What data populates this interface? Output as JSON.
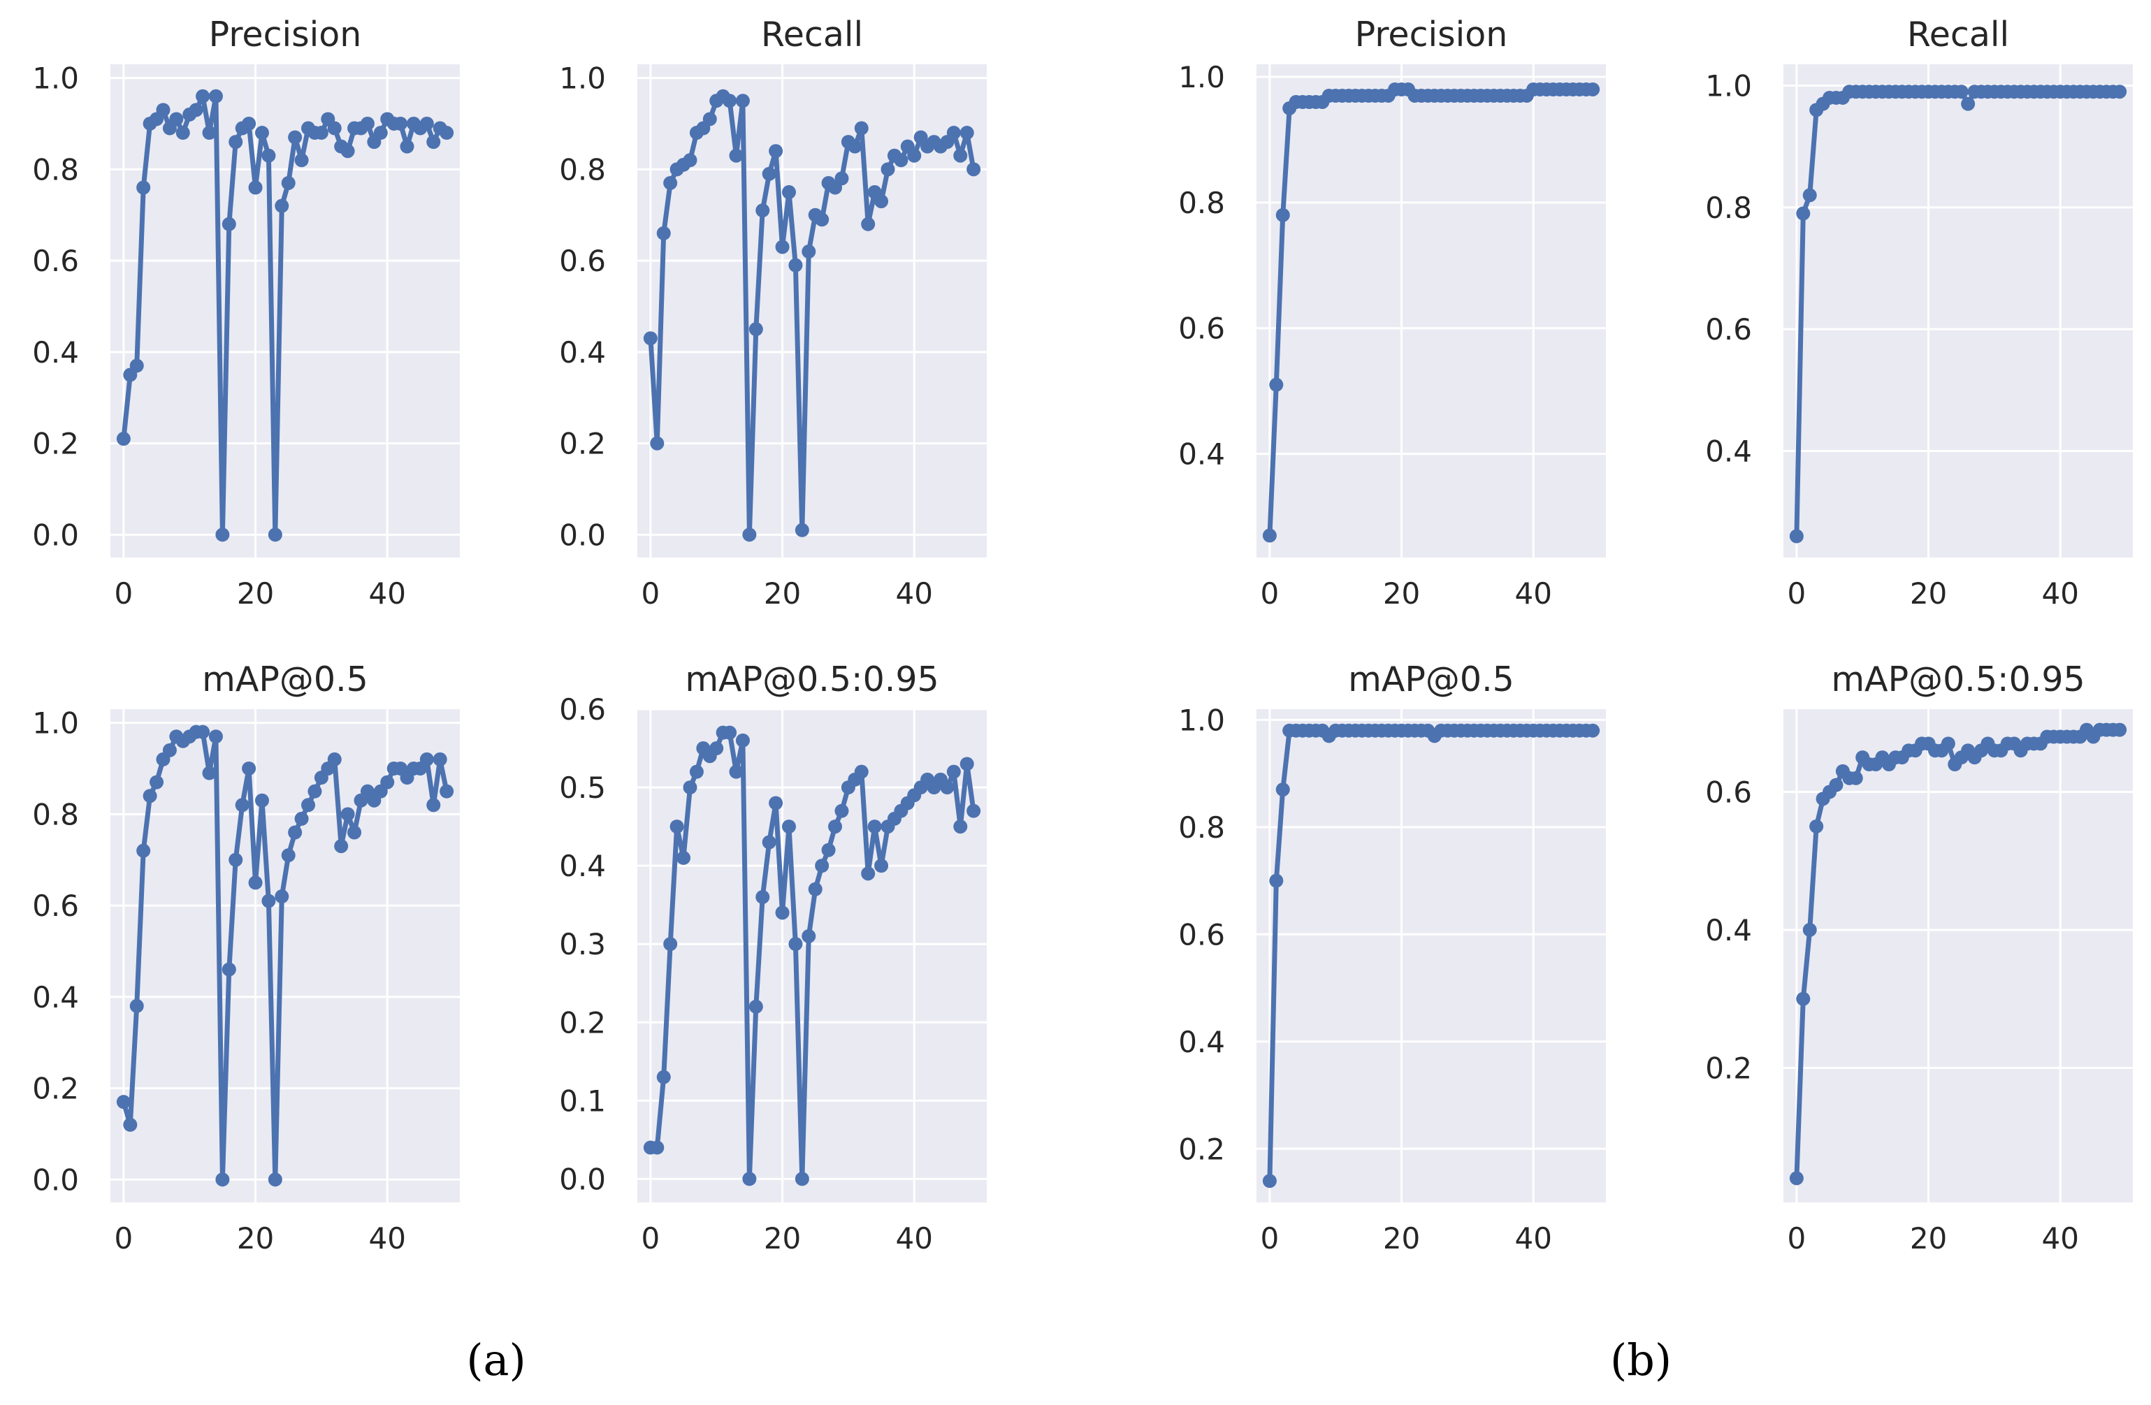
{
  "colors": {
    "series": "#4c72b0",
    "axes_bg": "#eaeaf2",
    "grid": "#ffffff",
    "text": "#262626"
  },
  "style": "seaborn darkgrid",
  "group_labels": [
    {
      "id": "a",
      "text": "(a)"
    },
    {
      "id": "b",
      "text": "(b)"
    }
  ],
  "chart_data": [
    {
      "type": "line",
      "group": "a",
      "title": "Precision",
      "xlabel": "",
      "ylabel": "",
      "xlim": [
        -2,
        51
      ],
      "ylim": [
        -0.05,
        1.03
      ],
      "xticks": [
        0,
        20,
        40
      ],
      "yticks": [
        0.0,
        0.2,
        0.4,
        0.6,
        0.8,
        1.0
      ],
      "xtick_labels": [
        "0",
        "20",
        "40"
      ],
      "ytick_labels": [
        "0.0",
        "0.2",
        "0.4",
        "0.6",
        "0.8",
        "1.0"
      ],
      "grid": true,
      "markers": true,
      "x": [
        0,
        1,
        2,
        3,
        4,
        5,
        6,
        7,
        8,
        9,
        10,
        11,
        12,
        13,
        14,
        15,
        16,
        17,
        18,
        19,
        20,
        21,
        22,
        23,
        24,
        25,
        26,
        27,
        28,
        29,
        30,
        31,
        32,
        33,
        34,
        35,
        36,
        37,
        38,
        39,
        40,
        41,
        42,
        43,
        44,
        45,
        46,
        47,
        48,
        49
      ],
      "y": [
        0.21,
        0.35,
        0.37,
        0.76,
        0.9,
        0.91,
        0.93,
        0.89,
        0.91,
        0.88,
        0.92,
        0.93,
        0.96,
        0.88,
        0.96,
        0.0,
        0.68,
        0.86,
        0.89,
        0.9,
        0.76,
        0.88,
        0.83,
        0.0,
        0.72,
        0.77,
        0.87,
        0.82,
        0.89,
        0.88,
        0.88,
        0.91,
        0.89,
        0.85,
        0.84,
        0.89,
        0.89,
        0.9,
        0.86,
        0.88,
        0.91,
        0.9,
        0.9,
        0.85,
        0.9,
        0.89,
        0.9,
        0.86,
        0.89,
        0.88
      ]
    },
    {
      "type": "line",
      "group": "a",
      "title": "Recall",
      "xlabel": "",
      "ylabel": "",
      "xlim": [
        -2,
        51
      ],
      "ylim": [
        -0.05,
        1.03
      ],
      "xticks": [
        0,
        20,
        40
      ],
      "yticks": [
        0.0,
        0.2,
        0.4,
        0.6,
        0.8,
        1.0
      ],
      "xtick_labels": [
        "0",
        "20",
        "40"
      ],
      "ytick_labels": [
        "0.0",
        "0.2",
        "0.4",
        "0.6",
        "0.8",
        "1.0"
      ],
      "grid": true,
      "markers": true,
      "x": [
        0,
        1,
        2,
        3,
        4,
        5,
        6,
        7,
        8,
        9,
        10,
        11,
        12,
        13,
        14,
        15,
        16,
        17,
        18,
        19,
        20,
        21,
        22,
        23,
        24,
        25,
        26,
        27,
        28,
        29,
        30,
        31,
        32,
        33,
        34,
        35,
        36,
        37,
        38,
        39,
        40,
        41,
        42,
        43,
        44,
        45,
        46,
        47,
        48,
        49
      ],
      "y": [
        0.43,
        0.2,
        0.66,
        0.77,
        0.8,
        0.81,
        0.82,
        0.88,
        0.89,
        0.91,
        0.95,
        0.96,
        0.95,
        0.83,
        0.95,
        0.0,
        0.45,
        0.71,
        0.79,
        0.84,
        0.63,
        0.75,
        0.59,
        0.01,
        0.62,
        0.7,
        0.69,
        0.77,
        0.76,
        0.78,
        0.86,
        0.85,
        0.89,
        0.68,
        0.75,
        0.73,
        0.8,
        0.83,
        0.82,
        0.85,
        0.83,
        0.87,
        0.85,
        0.86,
        0.85,
        0.86,
        0.88,
        0.83,
        0.88,
        0.8
      ]
    },
    {
      "type": "line",
      "group": "a",
      "title": "mAP@0.5",
      "xlabel": "",
      "ylabel": "",
      "xlim": [
        -2,
        51
      ],
      "ylim": [
        -0.05,
        1.03
      ],
      "xticks": [
        0,
        20,
        40
      ],
      "yticks": [
        0.0,
        0.2,
        0.4,
        0.6,
        0.8,
        1.0
      ],
      "xtick_labels": [
        "0",
        "20",
        "40"
      ],
      "ytick_labels": [
        "0.0",
        "0.2",
        "0.4",
        "0.6",
        "0.8",
        "1.0"
      ],
      "grid": true,
      "markers": true,
      "x": [
        0,
        1,
        2,
        3,
        4,
        5,
        6,
        7,
        8,
        9,
        10,
        11,
        12,
        13,
        14,
        15,
        16,
        17,
        18,
        19,
        20,
        21,
        22,
        23,
        24,
        25,
        26,
        27,
        28,
        29,
        30,
        31,
        32,
        33,
        34,
        35,
        36,
        37,
        38,
        39,
        40,
        41,
        42,
        43,
        44,
        45,
        46,
        47,
        48,
        49
      ],
      "y": [
        0.17,
        0.12,
        0.38,
        0.72,
        0.84,
        0.87,
        0.92,
        0.94,
        0.97,
        0.96,
        0.97,
        0.98,
        0.98,
        0.89,
        0.97,
        0.0,
        0.46,
        0.7,
        0.82,
        0.9,
        0.65,
        0.83,
        0.61,
        0.0,
        0.62,
        0.71,
        0.76,
        0.79,
        0.82,
        0.85,
        0.88,
        0.9,
        0.92,
        0.73,
        0.8,
        0.76,
        0.83,
        0.85,
        0.83,
        0.85,
        0.87,
        0.9,
        0.9,
        0.88,
        0.9,
        0.9,
        0.92,
        0.82,
        0.92,
        0.85
      ]
    },
    {
      "type": "line",
      "group": "a",
      "title": "mAP@0.5:0.95",
      "xlabel": "",
      "ylabel": "",
      "xlim": [
        -2,
        51
      ],
      "ylim": [
        -0.03,
        0.6
      ],
      "xticks": [
        0,
        20,
        40
      ],
      "yticks": [
        0.0,
        0.1,
        0.2,
        0.3,
        0.4,
        0.5,
        0.6
      ],
      "xtick_labels": [
        "0",
        "20",
        "40"
      ],
      "ytick_labels": [
        "0.0",
        "0.1",
        "0.2",
        "0.3",
        "0.4",
        "0.5",
        "0.6"
      ],
      "grid": true,
      "markers": true,
      "x": [
        0,
        1,
        2,
        3,
        4,
        5,
        6,
        7,
        8,
        9,
        10,
        11,
        12,
        13,
        14,
        15,
        16,
        17,
        18,
        19,
        20,
        21,
        22,
        23,
        24,
        25,
        26,
        27,
        28,
        29,
        30,
        31,
        32,
        33,
        34,
        35,
        36,
        37,
        38,
        39,
        40,
        41,
        42,
        43,
        44,
        45,
        46,
        47,
        48,
        49
      ],
      "y": [
        0.04,
        0.04,
        0.13,
        0.3,
        0.45,
        0.41,
        0.5,
        0.52,
        0.55,
        0.54,
        0.55,
        0.57,
        0.57,
        0.52,
        0.56,
        0.0,
        0.22,
        0.36,
        0.43,
        0.48,
        0.34,
        0.45,
        0.3,
        0.0,
        0.31,
        0.37,
        0.4,
        0.42,
        0.45,
        0.47,
        0.5,
        0.51,
        0.52,
        0.39,
        0.45,
        0.4,
        0.45,
        0.46,
        0.47,
        0.48,
        0.49,
        0.5,
        0.51,
        0.5,
        0.51,
        0.5,
        0.52,
        0.45,
        0.53,
        0.47
      ]
    },
    {
      "type": "line",
      "group": "b",
      "title": "Precision",
      "xlabel": "",
      "ylabel": "",
      "xlim": [
        -2,
        51
      ],
      "ylim": [
        0.235,
        1.02
      ],
      "xticks": [
        0,
        20,
        40
      ],
      "yticks": [
        0.4,
        0.6,
        0.8,
        1.0
      ],
      "xtick_labels": [
        "0",
        "20",
        "40"
      ],
      "ytick_labels": [
        "0.4",
        "0.6",
        "0.8",
        "1.0"
      ],
      "grid": true,
      "markers": true,
      "x": [
        0,
        1,
        2,
        3,
        4,
        5,
        6,
        7,
        8,
        9,
        10,
        11,
        12,
        13,
        14,
        15,
        16,
        17,
        18,
        19,
        20,
        21,
        22,
        23,
        24,
        25,
        26,
        27,
        28,
        29,
        30,
        31,
        32,
        33,
        34,
        35,
        36,
        37,
        38,
        39,
        40,
        41,
        42,
        43,
        44,
        45,
        46,
        47,
        48,
        49
      ],
      "y": [
        0.27,
        0.51,
        0.78,
        0.95,
        0.96,
        0.96,
        0.96,
        0.96,
        0.96,
        0.97,
        0.97,
        0.97,
        0.97,
        0.97,
        0.97,
        0.97,
        0.97,
        0.97,
        0.97,
        0.98,
        0.98,
        0.98,
        0.97,
        0.97,
        0.97,
        0.97,
        0.97,
        0.97,
        0.97,
        0.97,
        0.97,
        0.97,
        0.97,
        0.97,
        0.97,
        0.97,
        0.97,
        0.97,
        0.97,
        0.97,
        0.98,
        0.98,
        0.98,
        0.98,
        0.98,
        0.98,
        0.98,
        0.98,
        0.98,
        0.98
      ]
    },
    {
      "type": "line",
      "group": "b",
      "title": "Recall",
      "xlabel": "",
      "ylabel": "",
      "xlim": [
        -2,
        51
      ],
      "ylim": [
        0.225,
        1.035
      ],
      "xticks": [
        0,
        20,
        40
      ],
      "yticks": [
        0.4,
        0.6,
        0.8,
        1.0
      ],
      "xtick_labels": [
        "0",
        "20",
        "40"
      ],
      "ytick_labels": [
        "0.4",
        "0.6",
        "0.8",
        "1.0"
      ],
      "grid": true,
      "markers": true,
      "x": [
        0,
        1,
        2,
        3,
        4,
        5,
        6,
        7,
        8,
        9,
        10,
        11,
        12,
        13,
        14,
        15,
        16,
        17,
        18,
        19,
        20,
        21,
        22,
        23,
        24,
        25,
        26,
        27,
        28,
        29,
        30,
        31,
        32,
        33,
        34,
        35,
        36,
        37,
        38,
        39,
        40,
        41,
        42,
        43,
        44,
        45,
        46,
        47,
        48,
        49
      ],
      "y": [
        0.26,
        0.79,
        0.82,
        0.96,
        0.97,
        0.98,
        0.98,
        0.98,
        0.99,
        0.99,
        0.99,
        0.99,
        0.99,
        0.99,
        0.99,
        0.99,
        0.99,
        0.99,
        0.99,
        0.99,
        0.99,
        0.99,
        0.99,
        0.99,
        0.99,
        0.99,
        0.97,
        0.99,
        0.99,
        0.99,
        0.99,
        0.99,
        0.99,
        0.99,
        0.99,
        0.99,
        0.99,
        0.99,
        0.99,
        0.99,
        0.99,
        0.99,
        0.99,
        0.99,
        0.99,
        0.99,
        0.99,
        0.99,
        0.99,
        0.99
      ]
    },
    {
      "type": "line",
      "group": "b",
      "title": "mAP@0.5",
      "xlabel": "",
      "ylabel": "",
      "xlim": [
        -2,
        51
      ],
      "ylim": [
        0.1,
        1.02
      ],
      "xticks": [
        0,
        20,
        40
      ],
      "yticks": [
        0.2,
        0.4,
        0.6,
        0.8,
        1.0
      ],
      "xtick_labels": [
        "0",
        "20",
        "40"
      ],
      "ytick_labels": [
        "0.2",
        "0.4",
        "0.6",
        "0.8",
        "1.0"
      ],
      "grid": true,
      "markers": true,
      "x": [
        0,
        1,
        2,
        3,
        4,
        5,
        6,
        7,
        8,
        9,
        10,
        11,
        12,
        13,
        14,
        15,
        16,
        17,
        18,
        19,
        20,
        21,
        22,
        23,
        24,
        25,
        26,
        27,
        28,
        29,
        30,
        31,
        32,
        33,
        34,
        35,
        36,
        37,
        38,
        39,
        40,
        41,
        42,
        43,
        44,
        45,
        46,
        47,
        48,
        49
      ],
      "y": [
        0.14,
        0.7,
        0.87,
        0.98,
        0.98,
        0.98,
        0.98,
        0.98,
        0.98,
        0.97,
        0.98,
        0.98,
        0.98,
        0.98,
        0.98,
        0.98,
        0.98,
        0.98,
        0.98,
        0.98,
        0.98,
        0.98,
        0.98,
        0.98,
        0.98,
        0.97,
        0.98,
        0.98,
        0.98,
        0.98,
        0.98,
        0.98,
        0.98,
        0.98,
        0.98,
        0.98,
        0.98,
        0.98,
        0.98,
        0.98,
        0.98,
        0.98,
        0.98,
        0.98,
        0.98,
        0.98,
        0.98,
        0.98,
        0.98,
        0.98
      ]
    },
    {
      "type": "line",
      "group": "b",
      "title": "mAP@0.5:0.95",
      "xlabel": "",
      "ylabel": "",
      "xlim": [
        -2,
        51
      ],
      "ylim": [
        0.005,
        0.72
      ],
      "xticks": [
        0,
        20,
        40
      ],
      "yticks": [
        0.2,
        0.4,
        0.6
      ],
      "xtick_labels": [
        "0",
        "20",
        "40"
      ],
      "ytick_labels": [
        "0.2",
        "0.4",
        "0.6"
      ],
      "grid": true,
      "markers": true,
      "x": [
        0,
        1,
        2,
        3,
        4,
        5,
        6,
        7,
        8,
        9,
        10,
        11,
        12,
        13,
        14,
        15,
        16,
        17,
        18,
        19,
        20,
        21,
        22,
        23,
        24,
        25,
        26,
        27,
        28,
        29,
        30,
        31,
        32,
        33,
        34,
        35,
        36,
        37,
        38,
        39,
        40,
        41,
        42,
        43,
        44,
        45,
        46,
        47,
        48,
        49
      ],
      "y": [
        0.04,
        0.3,
        0.4,
        0.55,
        0.59,
        0.6,
        0.61,
        0.63,
        0.62,
        0.62,
        0.65,
        0.64,
        0.64,
        0.65,
        0.64,
        0.65,
        0.65,
        0.66,
        0.66,
        0.67,
        0.67,
        0.66,
        0.66,
        0.67,
        0.64,
        0.65,
        0.66,
        0.65,
        0.66,
        0.67,
        0.66,
        0.66,
        0.67,
        0.67,
        0.66,
        0.67,
        0.67,
        0.67,
        0.68,
        0.68,
        0.68,
        0.68,
        0.68,
        0.68,
        0.69,
        0.68,
        0.69,
        0.69,
        0.69,
        0.69
      ]
    }
  ]
}
